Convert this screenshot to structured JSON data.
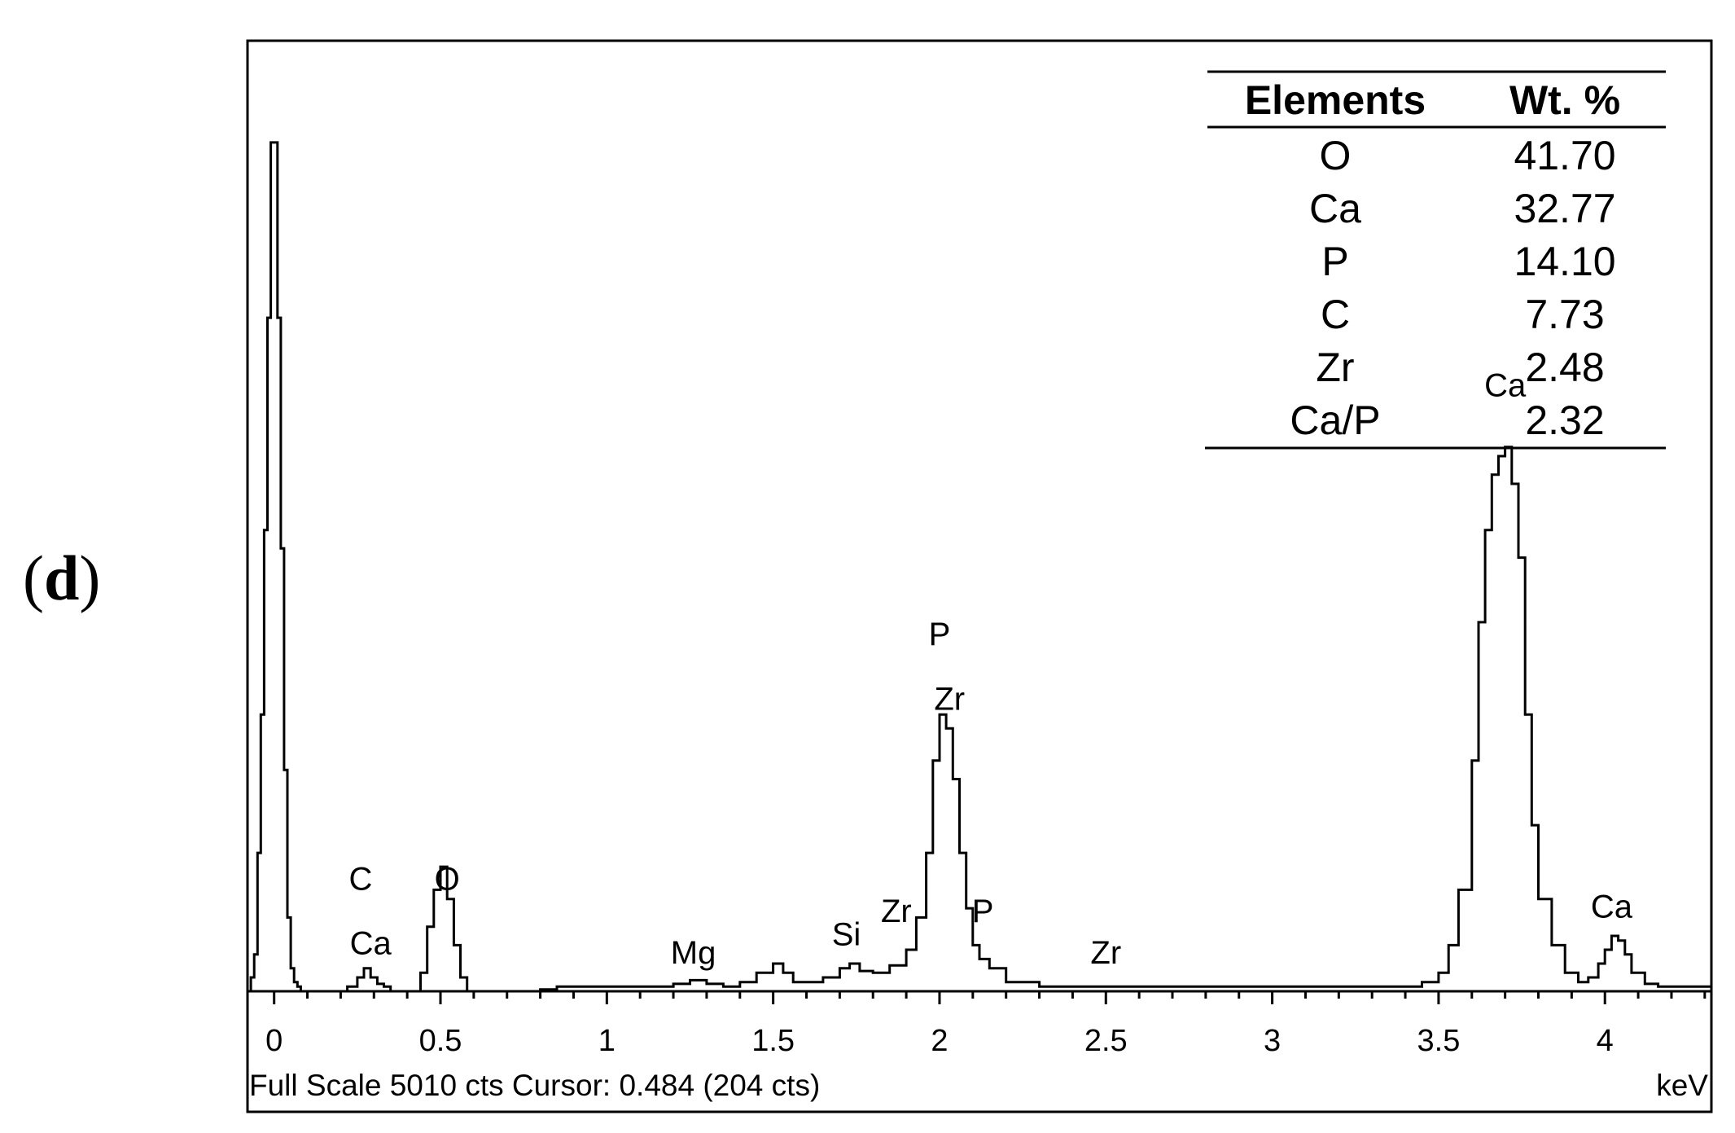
{
  "panel_label": "d",
  "chart_data": {
    "type": "line",
    "xlabel": "keV",
    "xlim": [
      -0.08,
      4.32
    ],
    "x_ticks": [
      "0",
      "0.5",
      "1",
      "1.5",
      "2",
      "2.5",
      "3",
      "3.5",
      "4"
    ],
    "footer": "Full Scale 5010 cts Cursor: 0.484  (204 cts)",
    "grid": false,
    "series": [
      {
        "x": [
          -0.1,
          -0.08,
          -0.07,
          -0.06,
          -0.05,
          -0.04,
          -0.03,
          -0.02,
          -0.01,
          0,
          0.01,
          0.02,
          0.03,
          0.04,
          0.05,
          0.06,
          0.07,
          0.08,
          0.1,
          0.2,
          0.22,
          0.25,
          0.27,
          0.29,
          0.31,
          0.33,
          0.35,
          0.4,
          0.44,
          0.46,
          0.48,
          0.5,
          0.52,
          0.54,
          0.56,
          0.58,
          0.6,
          0.62,
          0.8,
          0.85,
          1.0,
          1.1,
          1.2,
          1.25,
          1.3,
          1.35,
          1.4,
          1.45,
          1.5,
          1.53,
          1.56,
          1.6,
          1.65,
          1.7,
          1.73,
          1.76,
          1.8,
          1.85,
          1.9,
          1.93,
          1.96,
          1.98,
          2.0,
          2.02,
          2.04,
          2.06,
          2.08,
          2.1,
          2.12,
          2.15,
          2.2,
          2.3,
          2.5,
          2.7,
          3.0,
          3.2,
          3.4,
          3.45,
          3.5,
          3.53,
          3.56,
          3.6,
          3.62,
          3.64,
          3.66,
          3.68,
          3.7,
          3.72,
          3.74,
          3.76,
          3.78,
          3.8,
          3.84,
          3.88,
          3.92,
          3.95,
          3.98,
          4.0,
          4.02,
          4.04,
          4.06,
          4.08,
          4.12,
          4.16,
          4.2,
          4.32
        ],
        "y": [
          0,
          0,
          15,
          40,
          150,
          300,
          500,
          730,
          920,
          920,
          730,
          480,
          240,
          80,
          25,
          10,
          5,
          0,
          0,
          0,
          5,
          15,
          25,
          15,
          8,
          5,
          0,
          0,
          20,
          70,
          110,
          135,
          100,
          50,
          15,
          0,
          0,
          0,
          2,
          5,
          5,
          5,
          8,
          12,
          8,
          5,
          10,
          20,
          30,
          20,
          10,
          10,
          15,
          25,
          30,
          22,
          20,
          28,
          45,
          80,
          150,
          250,
          300,
          285,
          230,
          150,
          90,
          50,
          35,
          25,
          10,
          5,
          5,
          5,
          5,
          5,
          5,
          10,
          20,
          50,
          110,
          250,
          400,
          500,
          560,
          580,
          590,
          550,
          470,
          300,
          180,
          100,
          50,
          20,
          10,
          15,
          30,
          45,
          60,
          55,
          40,
          20,
          8,
          5,
          5,
          5
        ]
      }
    ],
    "peak_labels": [
      {
        "text": "C",
        "x": 0.26,
        "y": 110
      },
      {
        "text": "Ca",
        "x": 0.29,
        "y": 40
      },
      {
        "text": "O",
        "x": 0.52,
        "y": 110
      },
      {
        "text": "Mg",
        "x": 1.26,
        "y": 30
      },
      {
        "text": "Si",
        "x": 1.72,
        "y": 50
      },
      {
        "text": "Zr",
        "x": 1.87,
        "y": 75
      },
      {
        "text": "P",
        "x": 2.13,
        "y": 75
      },
      {
        "text": "P",
        "x": 2.0,
        "y": 375
      },
      {
        "text": "Zr",
        "x": 2.03,
        "y": 305
      },
      {
        "text": "Zr",
        "x": 2.5,
        "y": 30
      },
      {
        "text": "Ca",
        "x": 3.7,
        "y": 645
      },
      {
        "text": "Ca",
        "x": 4.02,
        "y": 80
      }
    ],
    "table": {
      "headers": [
        "Elements",
        "Wt. %"
      ],
      "rows": [
        [
          "O",
          "41.70"
        ],
        [
          "Ca",
          "32.77"
        ],
        [
          "P",
          "14.10"
        ],
        [
          "C",
          "7.73"
        ],
        [
          "Zr",
          "2.48"
        ],
        [
          "Ca/P",
          "2.32"
        ]
      ]
    }
  }
}
